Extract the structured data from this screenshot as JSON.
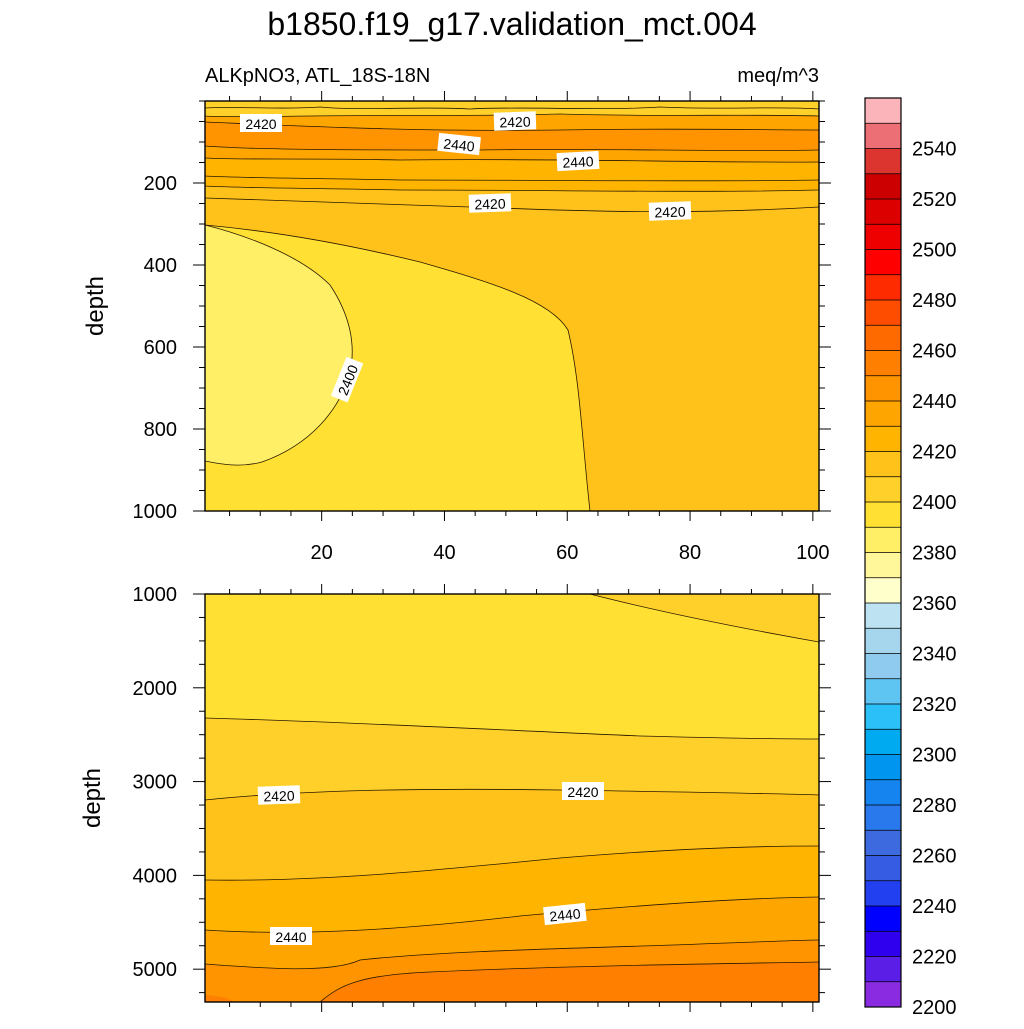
{
  "chart_data": {
    "type": "heatmap",
    "title": "b1850.f19_g17.validation_mct.004",
    "subtitle_left": "ALKpNO3, ATL_18S-18N",
    "subtitle_right": "meq/m^3",
    "ylabel": "depth",
    "x_ticks": [
      "20",
      "40",
      "60",
      "80",
      "100"
    ],
    "x_range": [
      1,
      101
    ],
    "panels": [
      {
        "name": "upper",
        "ylim": [
          0,
          1000
        ],
        "y_ticks": [
          "200",
          "400",
          "600",
          "800",
          "1000"
        ],
        "contour_labels": [
          "2420",
          "2420",
          "2440",
          "2440",
          "2420",
          "2420",
          "2400"
        ]
      },
      {
        "name": "lower",
        "ylim": [
          1000,
          5350
        ],
        "y_ticks": [
          "1000",
          "2000",
          "3000",
          "4000",
          "5000"
        ],
        "contour_labels": [
          "2420",
          "2420",
          "2440",
          "2440"
        ]
      }
    ],
    "colorbar": {
      "labels": [
        "2540",
        "2520",
        "2500",
        "2480",
        "2460",
        "2440",
        "2420",
        "2400",
        "2380",
        "2360",
        "2340",
        "2320",
        "2300",
        "2280",
        "2260",
        "2240",
        "2220",
        "2200"
      ],
      "colors": [
        "#fbb4b9",
        "#ed6f76",
        "#dc3530",
        "#cc0000",
        "#dd0000",
        "#ee0000",
        "#ff0000",
        "#ff2b00",
        "#ff4d00",
        "#ff6a00",
        "#ff8000",
        "#ff9400",
        "#ffa500",
        "#ffb400",
        "#ffc21a",
        "#ffd02a",
        "#ffe033",
        "#ffef66",
        "#fff799",
        "#ffffcc",
        "#bde3f3",
        "#a6d5ee",
        "#8ecbee",
        "#5ec4f2",
        "#2bc0f8",
        "#00aaf0",
        "#0096f0",
        "#1584ef",
        "#2979ec",
        "#3d6bdf",
        "#355ce2",
        "#2240f0",
        "#0000ff",
        "#2e00ee",
        "#5a1ee6",
        "#8a2be2"
      ]
    }
  }
}
